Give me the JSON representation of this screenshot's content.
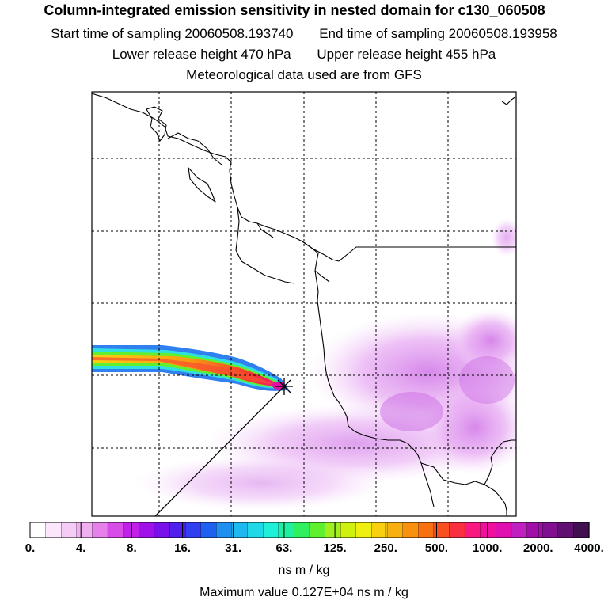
{
  "title": "Column-integrated emission sensitivity in nested domain for c130_060508",
  "start_label": "Start time of sampling 20060508.193740",
  "end_label": "End time of sampling 20060508.193958",
  "lower_label": "Lower release height  470 hPa",
  "upper_label": "Upper release height  455 hPa",
  "met_label": "Meteorological data used are from GFS",
  "colorbar": {
    "ticks": [
      "0.",
      "4.",
      "8.",
      "16.",
      "31.",
      "63.",
      "125.",
      "250.",
      "500.",
      "1000.",
      "2000.",
      "4000."
    ],
    "units": "ns m / kg",
    "colors": [
      "#ffffff",
      "#fbe6fb",
      "#f6ccf6",
      "#f0b0f0",
      "#e680ea",
      "#d84ce8",
      "#c220e6",
      "#a010e8",
      "#7a10ea",
      "#5020ec",
      "#3040f0",
      "#2060f0",
      "#2090f0",
      "#20b8f0",
      "#20d8e8",
      "#20f0d8",
      "#20f0a0",
      "#30f060",
      "#60f030",
      "#a0f020",
      "#d0f010",
      "#f0f010",
      "#f8d010",
      "#f8b010",
      "#f89010",
      "#f87010",
      "#f85020",
      "#f83040",
      "#f81880",
      "#f010a0",
      "#e010b0",
      "#c020c0",
      "#a010a8",
      "#801090",
      "#601070",
      "#401050"
    ]
  },
  "max_value_label": "Maximum value  0.127E+04 ns m / kg"
}
